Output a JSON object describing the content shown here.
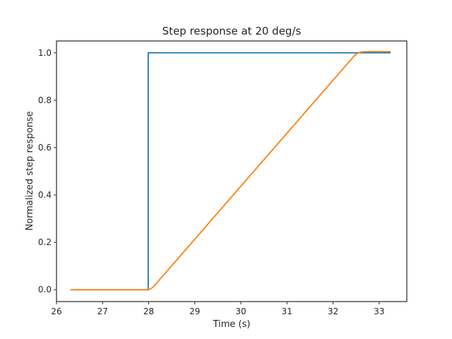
{
  "chart_data": {
    "type": "line",
    "title": "Step response at 20 deg/s",
    "xlabel": "Time (s)",
    "ylabel": "Normalized step response",
    "xlim": [
      26.0,
      33.6
    ],
    "ylim": [
      -0.05,
      1.05
    ],
    "xticks": [
      26,
      27,
      28,
      29,
      30,
      31,
      32,
      33
    ],
    "yticks": [
      0.0,
      0.2,
      0.4,
      0.6,
      0.8,
      1.0
    ],
    "ytick_labels": [
      "0.0",
      "0.2",
      "0.4",
      "0.6",
      "0.8",
      "1.0"
    ],
    "grid": false,
    "series": [
      {
        "color": "#1f77b4",
        "x": [
          26.3,
          27.99,
          27.99,
          33.25
        ],
        "y": [
          0.0,
          0.0,
          1.0,
          1.0
        ]
      },
      {
        "color": "#ff7f0e",
        "x": [
          26.3,
          28.0,
          28.05,
          28.1,
          32.45,
          32.52,
          32.6,
          32.7,
          33.25
        ],
        "y": [
          0.0,
          0.0,
          0.005,
          0.012,
          0.985,
          0.997,
          1.003,
          1.005,
          1.005
        ]
      }
    ]
  }
}
